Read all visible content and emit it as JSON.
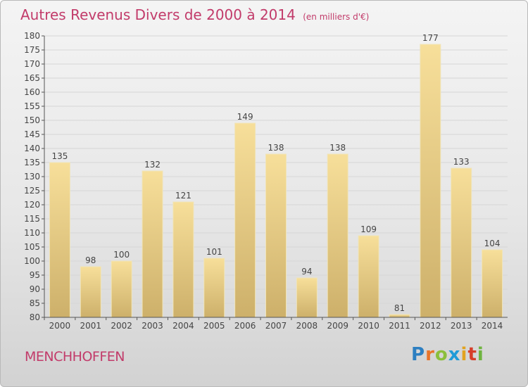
{
  "header": {
    "title": "Autres Revenus Divers de 2000 à 2014",
    "subtitle": "(en milliers d'€)"
  },
  "footer": {
    "city": "MENCHHOFFEN",
    "logo_letters": [
      {
        "ch": "P",
        "color": "#2d7fc1"
      },
      {
        "ch": "r",
        "color": "#e8742a"
      },
      {
        "ch": "o",
        "color": "#8bbf3c"
      },
      {
        "ch": "x",
        "color": "#1f9bd7"
      },
      {
        "ch": "i",
        "color": "#e2a320"
      },
      {
        "ch": "t",
        "color": "#d63e2a"
      },
      {
        "ch": "i",
        "color": "#6fb43f"
      }
    ]
  },
  "chart_data": {
    "type": "bar",
    "categories": [
      "2000",
      "2001",
      "2002",
      "2003",
      "2004",
      "2005",
      "2006",
      "2007",
      "2008",
      "2009",
      "2010",
      "2011",
      "2012",
      "2013",
      "2014"
    ],
    "values": [
      135,
      98,
      100,
      132,
      121,
      101,
      149,
      138,
      94,
      138,
      109,
      81,
      177,
      133,
      104
    ],
    "ylim": [
      80,
      180
    ],
    "ytick_step": 5,
    "grid": true,
    "colors": {
      "bar_light": "#f7df9a",
      "bar_dark": "#cdb06a",
      "bar_stroke": "#f0e4b8",
      "grid": "#d6d6d6",
      "axis": "#555555",
      "text": "#444444"
    }
  }
}
